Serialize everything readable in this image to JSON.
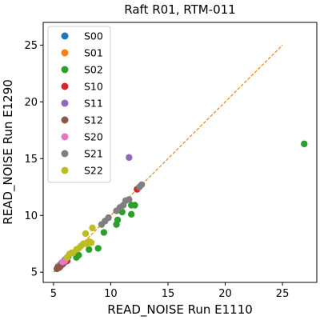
{
  "chart_data": {
    "type": "scatter",
    "title": "Raft R01, RTM-011",
    "xlabel": "READ_NOISE Run E1110",
    "ylabel": "READ_NOISE Run E1290",
    "xlim": [
      4.1,
      28.0
    ],
    "ylim": [
      4.1,
      27.0
    ],
    "xticks": [
      5,
      10,
      15,
      20,
      25
    ],
    "yticks": [
      5,
      10,
      15,
      20,
      25
    ],
    "grid": false,
    "legend_position": "top-left",
    "reference_line": {
      "style": "dashed",
      "color": "#ff7f0e",
      "x": [
        5,
        25
      ],
      "y": [
        5,
        25
      ]
    },
    "series": [
      {
        "name": "S00",
        "color": "#1f77b4",
        "points": [
          [
            5.4,
            5.5
          ],
          [
            5.7,
            5.8
          ],
          [
            6.0,
            6.1
          ],
          [
            6.3,
            6.4
          ]
        ]
      },
      {
        "name": "S01",
        "color": "#ff7f0e",
        "points": [
          [
            5.5,
            5.6
          ],
          [
            5.9,
            5.9
          ],
          [
            6.2,
            6.3
          ],
          [
            6.6,
            6.7
          ]
        ]
      },
      {
        "name": "S02",
        "color": "#2ca02c",
        "points": [
          [
            7.0,
            6.3
          ],
          [
            7.2,
            6.5
          ],
          [
            8.1,
            7.0
          ],
          [
            8.9,
            7.1
          ],
          [
            9.4,
            8.5
          ],
          [
            10.5,
            9.2
          ],
          [
            10.6,
            9.6
          ],
          [
            11.0,
            10.3
          ],
          [
            11.8,
            10.1
          ],
          [
            11.8,
            10.9
          ],
          [
            12.1,
            10.9
          ],
          [
            26.9,
            16.3
          ]
        ]
      },
      {
        "name": "S10",
        "color": "#d62728",
        "points": [
          [
            5.5,
            5.4
          ],
          [
            5.8,
            5.7
          ],
          [
            6.0,
            5.9
          ],
          [
            6.2,
            6.0
          ],
          [
            12.3,
            12.3
          ]
        ]
      },
      {
        "name": "S11",
        "color": "#9467bd",
        "points": [
          [
            5.6,
            5.6
          ],
          [
            5.9,
            5.9
          ],
          [
            11.6,
            15.1
          ]
        ]
      },
      {
        "name": "S12",
        "color": "#8c564b",
        "points": [
          [
            5.3,
            5.3
          ],
          [
            5.4,
            5.4
          ],
          [
            5.6,
            5.5
          ],
          [
            5.8,
            5.7
          ]
        ]
      },
      {
        "name": "S20",
        "color": "#e377c2",
        "points": [
          [
            5.8,
            5.9
          ],
          [
            6.0,
            6.0
          ],
          [
            6.1,
            6.2
          ]
        ]
      },
      {
        "name": "S21",
        "color": "#7f7f7f",
        "points": [
          [
            9.2,
            9.2
          ],
          [
            9.5,
            9.5
          ],
          [
            9.8,
            9.8
          ],
          [
            10.5,
            10.4
          ],
          [
            10.8,
            10.7
          ],
          [
            11.1,
            10.9
          ],
          [
            11.3,
            11.3
          ],
          [
            11.6,
            11.4
          ],
          [
            12.5,
            12.5
          ],
          [
            12.7,
            12.7
          ]
        ]
      },
      {
        "name": "S22",
        "color": "#bcbd22",
        "points": [
          [
            6.2,
            6.3
          ],
          [
            6.4,
            6.6
          ],
          [
            6.7,
            6.7
          ],
          [
            7.0,
            7.0
          ],
          [
            7.2,
            7.1
          ],
          [
            7.4,
            7.3
          ],
          [
            7.6,
            7.5
          ],
          [
            7.9,
            7.5
          ],
          [
            8.1,
            7.7
          ],
          [
            8.3,
            7.6
          ],
          [
            7.8,
            8.4
          ],
          [
            8.4,
            8.9
          ]
        ]
      }
    ]
  }
}
